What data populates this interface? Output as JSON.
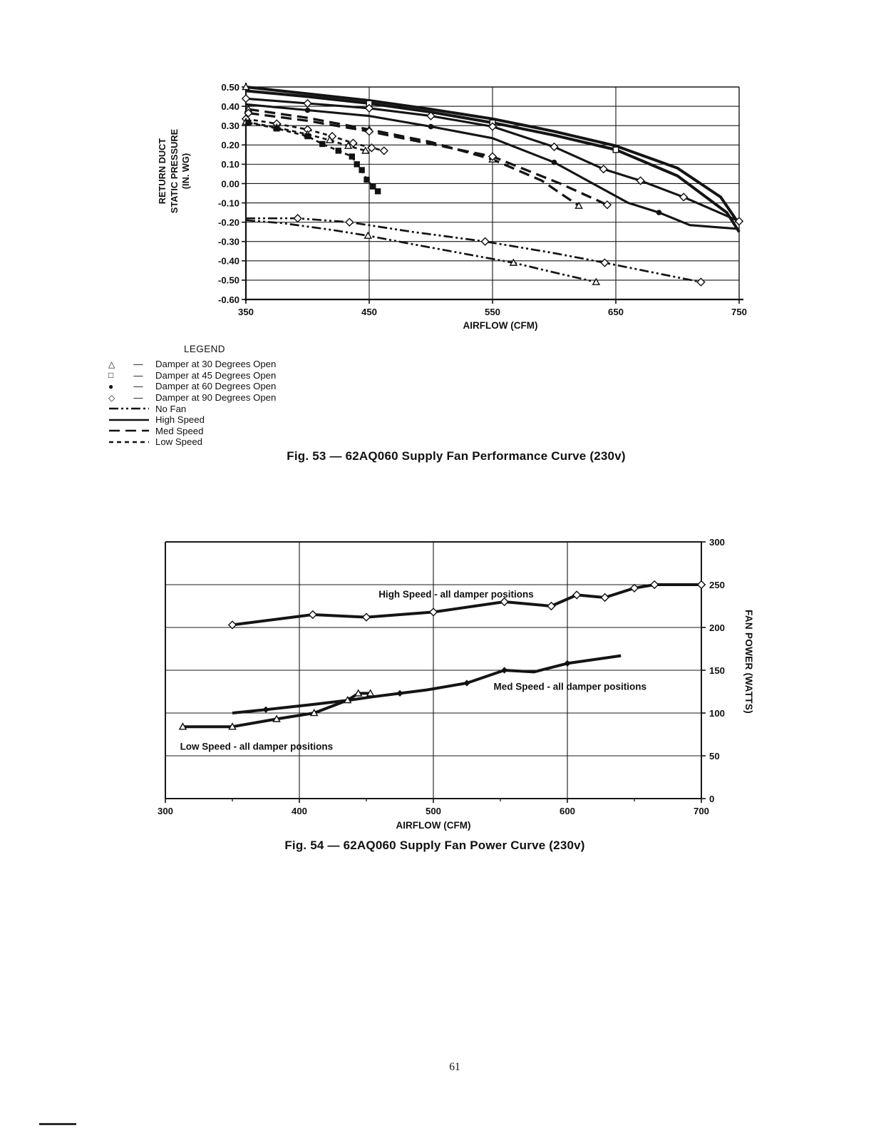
{
  "page": {
    "number": "61"
  },
  "chart_data": [
    {
      "type": "line",
      "caption": "Fig. 53 — 62AQ060 Supply Fan Performance Curve (230v)",
      "xlabel": "AIRFLOW (CFM)",
      "ylabel": "RETURN DUCT STATIC PRESSURE (IN. WG)",
      "ylabel_lines": [
        "RETURN DUCT",
        "STATIC PRESSURE",
        "(IN. WG)"
      ],
      "xlim": [
        350,
        750
      ],
      "ylim": [
        -0.6,
        0.5
      ],
      "xticks": [
        350,
        450,
        550,
        650,
        750
      ],
      "yticks": [
        "0.50",
        "0.40",
        "0.30",
        "0.20",
        "0.10",
        "0.00",
        "-0.10",
        "-0.20",
        "-0.30",
        "-0.40",
        "-0.50",
        "-0.60"
      ],
      "grid": true,
      "legend": {
        "title": "LEGEND",
        "items": [
          {
            "marker": "triangle-open",
            "label": "Damper at 30 Degrees Open"
          },
          {
            "marker": "square-open",
            "label": "Damper at 45 Degrees Open"
          },
          {
            "marker": "circle-filled",
            "label": "Damper at 60 Degrees Open"
          },
          {
            "marker": "diamond-open",
            "label": "Damper at 90 Degrees Open"
          },
          {
            "line": "dash-dot-dot",
            "label": "No Fan"
          },
          {
            "line": "solid-thick",
            "label": "High Speed"
          },
          {
            "line": "long-dash",
            "label": "Med Speed"
          },
          {
            "line": "short-dash",
            "label": "Low Speed"
          }
        ]
      },
      "series": [
        {
          "name": "High Speed — Damper at 30 Degrees Open",
          "style": "solid-thick",
          "marker": "triangle-open",
          "marker_at": [
            0
          ],
          "points": [
            [
              350,
              0.5
            ],
            [
              400,
              0.465
            ],
            [
              450,
              0.43
            ],
            [
              500,
              0.385
            ],
            [
              550,
              0.335
            ],
            [
              600,
              0.27
            ],
            [
              650,
              0.195
            ],
            [
              700,
              0.08
            ],
            [
              735,
              -0.07
            ],
            [
              750,
              -0.21
            ]
          ]
        },
        {
          "name": "High Speed — Damper at 45 Degrees Open",
          "style": "solid-thick",
          "marker": "square-open",
          "marker_at": [
            2,
            4,
            6
          ],
          "points": [
            [
              350,
              0.48
            ],
            [
              400,
              0.45
            ],
            [
              450,
              0.415
            ],
            [
              500,
              0.37
            ],
            [
              550,
              0.315
            ],
            [
              600,
              0.25
            ],
            [
              650,
              0.175
            ],
            [
              700,
              0.04
            ],
            [
              740,
              -0.15
            ],
            [
              750,
              -0.25
            ]
          ]
        },
        {
          "name": "High Speed — Damper at 90 Degrees Open",
          "style": "solid",
          "marker": "diamond-open",
          "points": [
            [
              350,
              0.44
            ],
            [
              400,
              0.415
            ],
            [
              450,
              0.39
            ],
            [
              500,
              0.35
            ],
            [
              550,
              0.295
            ],
            [
              600,
              0.19
            ],
            [
              640,
              0.075
            ],
            [
              670,
              0.015
            ],
            [
              705,
              -0.07
            ],
            [
              750,
              -0.195
            ]
          ]
        },
        {
          "name": "High Speed — Damper at 60 Degrees Open",
          "style": "solid",
          "marker": "circle-filled",
          "marker_at": [
            1,
            3,
            5,
            8
          ],
          "points": [
            [
              350,
              0.41
            ],
            [
              400,
              0.38
            ],
            [
              450,
              0.35
            ],
            [
              500,
              0.295
            ],
            [
              550,
              0.235
            ],
            [
              600,
              0.11
            ],
            [
              630,
              0.005
            ],
            [
              660,
              -0.1
            ],
            [
              685,
              -0.15
            ],
            [
              710,
              -0.215
            ],
            [
              750,
              -0.235
            ]
          ]
        },
        {
          "name": "Med Speed — Damper at 30 Degrees Open",
          "style": "long-dash",
          "marker": "triangle-open",
          "marker_at": [
            0,
            2,
            4,
            6
          ],
          "points": [
            [
              352,
              0.385
            ],
            [
              400,
              0.34
            ],
            [
              450,
              0.28
            ],
            [
              500,
              0.215
            ],
            [
              550,
              0.125
            ],
            [
              590,
              0.015
            ],
            [
              620,
              -0.115
            ]
          ]
        },
        {
          "name": "Med Speed — Damper at 90 Degrees Open",
          "style": "long-dash",
          "marker": "diamond-open",
          "marker_at": [
            0,
            2,
            4,
            6
          ],
          "points": [
            [
              352,
              0.365
            ],
            [
              400,
              0.325
            ],
            [
              450,
              0.27
            ],
            [
              500,
              0.205
            ],
            [
              550,
              0.14
            ],
            [
              605,
              0.0
            ],
            [
              643,
              -0.11
            ]
          ]
        },
        {
          "name": "Low Speed — Damper at 90 Degrees Open",
          "style": "short-dash",
          "marker": "diamond-open",
          "points": [
            [
              350,
              0.335
            ],
            [
              375,
              0.31
            ],
            [
              400,
              0.28
            ],
            [
              420,
              0.245
            ],
            [
              437,
              0.21
            ],
            [
              452,
              0.185
            ],
            [
              462,
              0.17
            ]
          ]
        },
        {
          "name": "Low Speed — Damper at 30 Degrees Open",
          "style": "short-dash",
          "marker": "triangle-open",
          "points": [
            [
              350,
              0.32
            ],
            [
              375,
              0.29
            ],
            [
              400,
              0.255
            ],
            [
              418,
              0.225
            ],
            [
              433,
              0.195
            ],
            [
              447,
              0.17
            ]
          ]
        },
        {
          "name": "Low Speed — Damper at 45/60 Degrees Open",
          "style": "short-dash",
          "marker": "square-filled",
          "points": [
            [
              352,
              0.315
            ],
            [
              375,
              0.285
            ],
            [
              400,
              0.245
            ],
            [
              412,
              0.205
            ],
            [
              425,
              0.17
            ],
            [
              436,
              0.14
            ],
            [
              440,
              0.1
            ],
            [
              444,
              0.07
            ],
            [
              448,
              0.02
            ],
            [
              453,
              -0.015
            ],
            [
              457,
              -0.04
            ]
          ]
        },
        {
          "name": "No Fan — Damper at 90 Degrees Open",
          "style": "dash-dot-dot",
          "marker": "diamond-open",
          "marker_at": [
            1,
            2,
            4,
            6,
            8
          ],
          "points": [
            [
              350,
              -0.18
            ],
            [
              392,
              -0.18
            ],
            [
              434,
              -0.2
            ],
            [
              485,
              -0.25
            ],
            [
              544,
              -0.3
            ],
            [
              600,
              -0.36
            ],
            [
              641,
              -0.41
            ],
            [
              680,
              -0.46
            ],
            [
              719,
              -0.51
            ]
          ]
        },
        {
          "name": "No Fan — Damper at 30 Degrees Open",
          "style": "dash-dot-dot",
          "marker": "triangle-open",
          "marker_at": [
            3,
            6,
            8
          ],
          "points": [
            [
              350,
              -0.19
            ],
            [
              380,
              -0.205
            ],
            [
              420,
              -0.24
            ],
            [
              449,
              -0.27
            ],
            [
              482,
              -0.31
            ],
            [
              520,
              -0.355
            ],
            [
              567,
              -0.41
            ],
            [
              600,
              -0.46
            ],
            [
              634,
              -0.51
            ]
          ]
        }
      ]
    },
    {
      "type": "line",
      "caption": "Fig. 54 — 62AQ060 Supply Fan Power Curve (230v)",
      "xlabel": "AIRFLOW (CFM)",
      "ylabel": "FAN POWER (WATTS)",
      "xlim": [
        300,
        700
      ],
      "ylim": [
        0,
        300
      ],
      "xticks": [
        300,
        400,
        500,
        600,
        700
      ],
      "xminor": [
        350,
        450,
        550,
        650
      ],
      "yticks": [
        300,
        250,
        200,
        150,
        100,
        50,
        0
      ],
      "grid": true,
      "labels": [
        {
          "text": "High Speed - all damper positions",
          "x": 517,
          "y": 235
        },
        {
          "text": "Med Speed - all damper positions",
          "x": 602,
          "y": 127
        },
        {
          "text": "Low Speed - all damper positions",
          "x": 368,
          "y": 57
        }
      ],
      "series": [
        {
          "name": "High Speed - all damper positions",
          "style": "solid-thick",
          "marker": "diamond-open",
          "points": [
            [
              350,
              203
            ],
            [
              410,
              215
            ],
            [
              450,
              212
            ],
            [
              500,
              218
            ],
            [
              553,
              230
            ],
            [
              588,
              225
            ],
            [
              607,
              238
            ],
            [
              628,
              235
            ],
            [
              650,
              246
            ],
            [
              665,
              250
            ],
            [
              700,
              250
            ]
          ]
        },
        {
          "name": "Med Speed - all damper positions",
          "style": "solid-thick",
          "marker": "diamond-filled",
          "marker_at": [
            1,
            3,
            5,
            7,
            8,
            10
          ],
          "points": [
            [
              350,
              100
            ],
            [
              375,
              104
            ],
            [
              410,
              110
            ],
            [
              437,
              115
            ],
            [
              455,
              119
            ],
            [
              475,
              123
            ],
            [
              495,
              127
            ],
            [
              525,
              135
            ],
            [
              553,
              150
            ],
            [
              575,
              148
            ],
            [
              600,
              158
            ],
            [
              640,
              167
            ]
          ]
        },
        {
          "name": "Low Speed - all damper positions",
          "style": "solid-thick",
          "marker": "triangle-open",
          "points": [
            [
              313,
              84
            ],
            [
              350,
              84
            ],
            [
              383,
              93
            ],
            [
              411,
              100
            ],
            [
              436,
              115
            ],
            [
              444,
              123
            ],
            [
              453,
              123
            ]
          ]
        }
      ]
    }
  ]
}
